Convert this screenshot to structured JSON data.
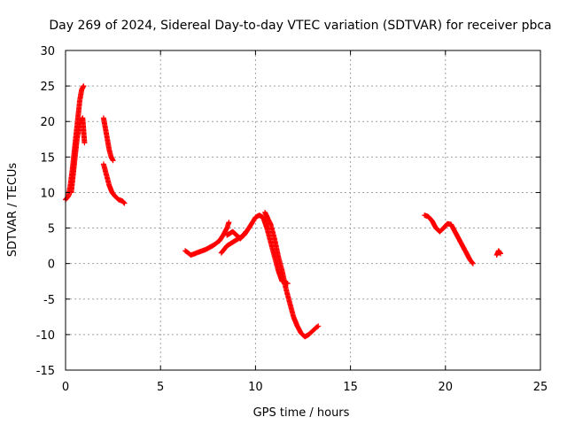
{
  "chart_data": {
    "type": "scatter",
    "title": "Day 269 of 2024, Sidereal Day-to-day VTEC variation (SDTVAR) for receiver pbca",
    "xlabel": "GPS time / hours",
    "ylabel": "SDTVAR / TECUs",
    "xlim": [
      0,
      25
    ],
    "ylim": [
      -15,
      30
    ],
    "xticks": [
      0,
      5,
      10,
      15,
      20,
      25
    ],
    "yticks": [
      -15,
      -10,
      -5,
      0,
      5,
      10,
      15,
      20,
      25,
      30
    ],
    "grid": true,
    "marker": "+",
    "series": [
      {
        "name": "SDTVAR",
        "color": "#ff0000",
        "segments": [
          [
            [
              0.0,
              9
            ],
            [
              0.15,
              9.5
            ],
            [
              0.25,
              11
            ],
            [
              0.35,
              13
            ],
            [
              0.45,
              15.5
            ],
            [
              0.55,
              18
            ],
            [
              0.65,
              20.5
            ],
            [
              0.75,
              23
            ],
            [
              0.85,
              24.5
            ],
            [
              0.95,
              25
            ]
          ],
          [
            [
              0.3,
              10
            ],
            [
              0.4,
              12.5
            ],
            [
              0.5,
              15
            ],
            [
              0.6,
              17.5
            ],
            [
              0.7,
              19
            ],
            [
              0.8,
              20
            ],
            [
              0.9,
              20.5
            ],
            [
              1.0,
              17
            ]
          ],
          [
            [
              2.0,
              20.5
            ],
            [
              2.1,
              19
            ],
            [
              2.2,
              17.5
            ],
            [
              2.3,
              16
            ],
            [
              2.4,
              15
            ],
            [
              2.5,
              14.5
            ]
          ],
          [
            [
              2.0,
              14
            ],
            [
              2.1,
              13
            ],
            [
              2.2,
              12
            ],
            [
              2.3,
              11
            ],
            [
              2.45,
              10
            ],
            [
              2.6,
              9.5
            ],
            [
              2.8,
              9
            ],
            [
              3.0,
              8.8
            ],
            [
              3.1,
              8.5
            ]
          ],
          [
            [
              6.3,
              1.8
            ],
            [
              6.6,
              1.2
            ],
            [
              7.0,
              1.6
            ],
            [
              7.4,
              2.0
            ],
            [
              7.8,
              2.6
            ],
            [
              8.1,
              3.2
            ],
            [
              8.3,
              4.0
            ],
            [
              8.5,
              5.0
            ],
            [
              8.6,
              5.8
            ]
          ],
          [
            [
              8.2,
              1.5
            ],
            [
              8.5,
              2.5
            ],
            [
              8.8,
              3.0
            ],
            [
              9.1,
              3.5
            ],
            [
              9.4,
              4.0
            ],
            [
              9.7,
              5.2
            ],
            [
              10.0,
              6.5
            ],
            [
              10.2,
              6.8
            ],
            [
              10.4,
              6.5
            ],
            [
              10.6,
              5.0
            ],
            [
              10.8,
              3.0
            ],
            [
              11.0,
              1.0
            ],
            [
              11.2,
              -1.0
            ],
            [
              11.4,
              -2.5
            ],
            [
              11.7,
              -2.8
            ]
          ],
          [
            [
              8.5,
              4.0
            ],
            [
              8.8,
              4.5
            ],
            [
              9.2,
              3.5
            ],
            [
              9.5,
              4.5
            ]
          ],
          [
            [
              10.5,
              7.2
            ],
            [
              10.8,
              5.5
            ],
            [
              11.0,
              3.5
            ],
            [
              11.2,
              1.0
            ],
            [
              11.4,
              -1.0
            ],
            [
              11.6,
              -3.5
            ],
            [
              11.8,
              -5.5
            ],
            [
              12.0,
              -7.5
            ],
            [
              12.2,
              -8.8
            ],
            [
              12.4,
              -9.8
            ],
            [
              12.6,
              -10.3
            ],
            [
              12.8,
              -10.0
            ],
            [
              13.0,
              -9.5
            ],
            [
              13.2,
              -9.0
            ],
            [
              13.3,
              -8.8
            ]
          ],
          [
            [
              18.9,
              6.8
            ],
            [
              19.1,
              6.6
            ],
            [
              19.3,
              6.0
            ],
            [
              19.5,
              5.0
            ],
            [
              19.7,
              4.5
            ],
            [
              19.9,
              5.0
            ],
            [
              20.1,
              5.6
            ],
            [
              20.3,
              5.5
            ],
            [
              20.5,
              4.5
            ],
            [
              20.7,
              3.5
            ],
            [
              20.9,
              2.5
            ],
            [
              21.1,
              1.5
            ],
            [
              21.3,
              0.5
            ],
            [
              21.45,
              0.0
            ]
          ],
          [
            [
              22.7,
              1.2
            ],
            [
              22.8,
              1.8
            ],
            [
              22.9,
              1.4
            ]
          ]
        ]
      }
    ]
  }
}
